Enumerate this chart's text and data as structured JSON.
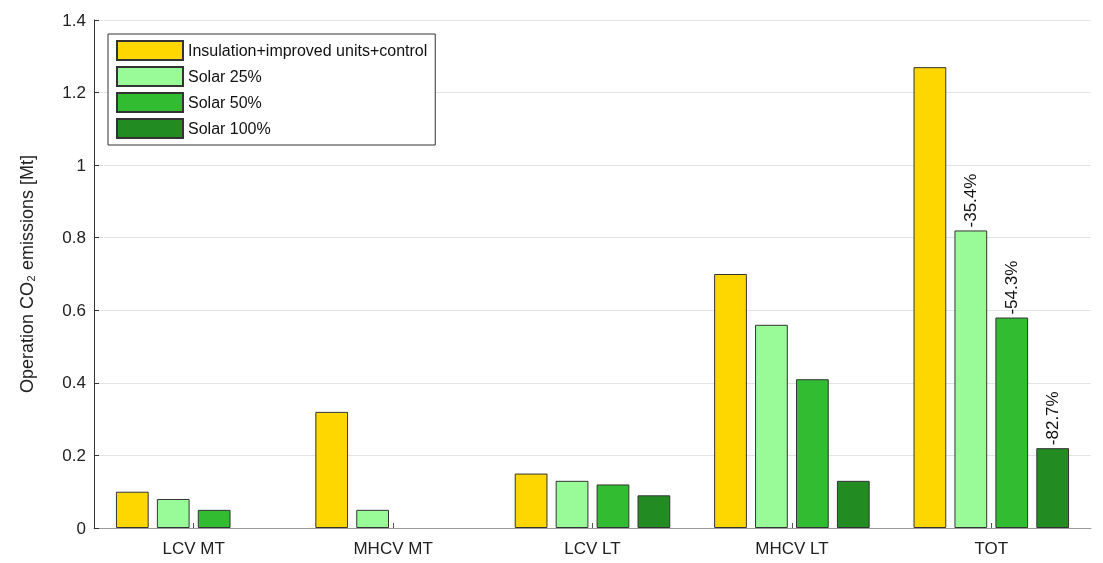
{
  "chart_data": {
    "type": "bar",
    "ylabel": "Operation CO₂ emissions [Mt]",
    "categories": [
      "LCV MT",
      "MHCV MT",
      "LCV LT",
      "MHCV LT",
      "TOT"
    ],
    "series": [
      {
        "name": "Insulation+improved units+control",
        "color": "#ffd700",
        "values": [
          0.1,
          0.32,
          0.15,
          0.7,
          1.27
        ]
      },
      {
        "name": "Solar 25%",
        "color": "#98fb98",
        "values": [
          0.08,
          0.05,
          0.13,
          0.56,
          0.82
        ]
      },
      {
        "name": "Solar 50%",
        "color": "#32bc32",
        "values": [
          0.05,
          null,
          0.12,
          0.41,
          0.58
        ]
      },
      {
        "name": "Solar 100%",
        "color": "#228b22",
        "values": [
          null,
          null,
          0.09,
          0.13,
          0.22
        ]
      }
    ],
    "annotations": [
      "-35.4%",
      "-54.3%",
      "-82.7%"
    ],
    "ylim": [
      0,
      1.4
    ],
    "yticks": [
      0,
      0.2,
      0.4,
      0.6,
      0.8,
      1,
      1.2,
      1.4
    ],
    "grid": "y",
    "legend": "top left"
  }
}
